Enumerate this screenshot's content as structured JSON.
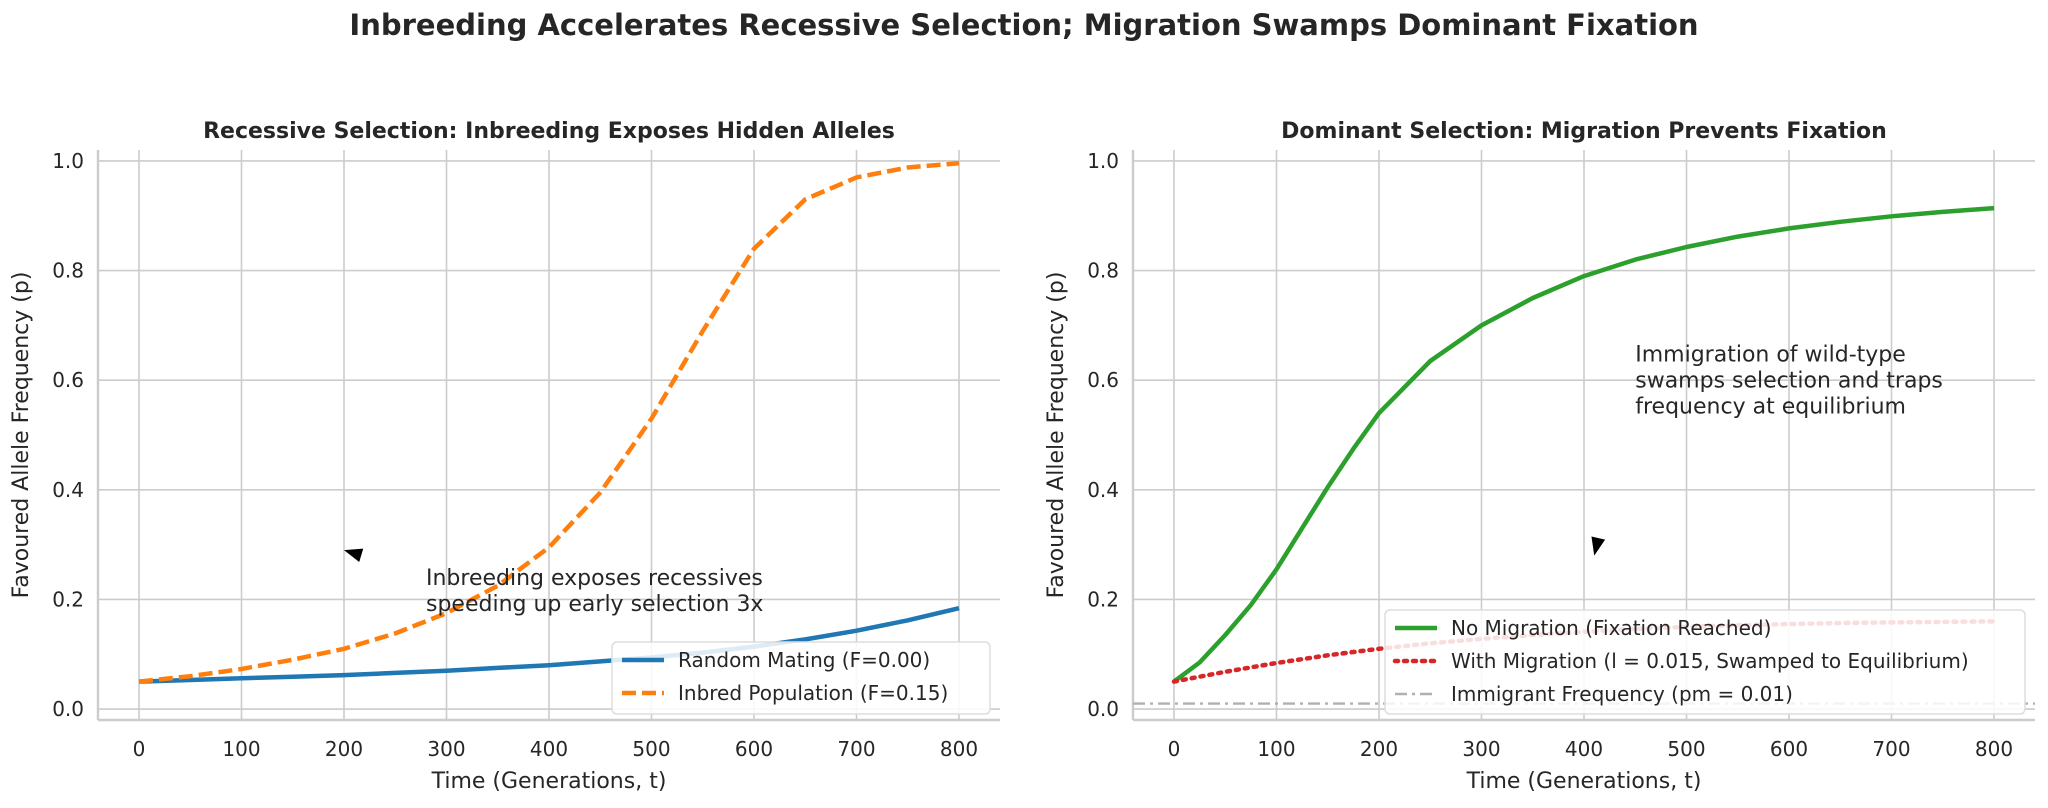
{
  "suptitle": "Inbreeding Accelerates Recessive Selection; Migration Swamps Dominant Fixation",
  "chart_data": [
    {
      "type": "line",
      "title": "Recessive Selection: Inbreeding Exposes Hidden Alleles",
      "xlabel": "Time (Generations, t)",
      "ylabel": "Favoured Allele Frequency (p)",
      "xlim": [
        -40,
        840
      ],
      "ylim": [
        -0.02,
        1.02
      ],
      "xticks": [
        0,
        100,
        200,
        300,
        400,
        500,
        600,
        700,
        800
      ],
      "yticks": [
        0.0,
        0.2,
        0.4,
        0.6,
        0.8,
        1.0
      ],
      "xtick_labels": [
        "0",
        "100",
        "200",
        "300",
        "400",
        "500",
        "600",
        "700",
        "800"
      ],
      "ytick_labels": [
        "0.0",
        "0.2",
        "0.4",
        "0.6",
        "0.8",
        "1.0"
      ],
      "grid": true,
      "legend_position": "lower-right",
      "series": [
        {
          "name": "Random Mating (F=0.00)",
          "color": "#1f77b4",
          "style": "solid",
          "x": [
            0,
            50,
            100,
            150,
            200,
            250,
            300,
            350,
            400,
            450,
            500,
            550,
            600,
            650,
            700,
            750,
            800
          ],
          "y": [
            0.05,
            0.053,
            0.056,
            0.059,
            0.062,
            0.066,
            0.07,
            0.075,
            0.08,
            0.087,
            0.094,
            0.103,
            0.114,
            0.127,
            0.143,
            0.162,
            0.184
          ]
        },
        {
          "name": "Inbred Population (F=0.15)",
          "color": "#ff7f0e",
          "style": "dashed",
          "x": [
            0,
            50,
            100,
            150,
            200,
            250,
            300,
            350,
            400,
            450,
            500,
            550,
            600,
            650,
            700,
            750,
            800
          ],
          "y": [
            0.05,
            0.06,
            0.073,
            0.09,
            0.11,
            0.138,
            0.175,
            0.225,
            0.295,
            0.395,
            0.53,
            0.69,
            0.84,
            0.93,
            0.97,
            0.988,
            0.996
          ]
        }
      ],
      "annotations": [
        {
          "text_lines": [
            "Inbreeding exposes recessives",
            "speeding up early selection 3x"
          ],
          "x": 280,
          "y": 0.19,
          "arrow_to": [
            200,
            0.29
          ]
        }
      ]
    },
    {
      "type": "line",
      "title": "Dominant Selection: Migration Prevents Fixation",
      "xlabel": "Time (Generations, t)",
      "ylabel": "Favoured Allele Frequency (p)",
      "xlim": [
        -40,
        840
      ],
      "ylim": [
        -0.02,
        1.02
      ],
      "xticks": [
        0,
        100,
        200,
        300,
        400,
        500,
        600,
        700,
        800
      ],
      "yticks": [
        0.0,
        0.2,
        0.4,
        0.6,
        0.8,
        1.0
      ],
      "xtick_labels": [
        "0",
        "100",
        "200",
        "300",
        "400",
        "500",
        "600",
        "700",
        "800"
      ],
      "ytick_labels": [
        "0.0",
        "0.2",
        "0.4",
        "0.6",
        "0.8",
        "1.0"
      ],
      "grid": true,
      "legend_position": "lower-right",
      "series": [
        {
          "name": "No Migration (Fixation Reached)",
          "color": "#2ca02c",
          "style": "solid",
          "x": [
            0,
            25,
            50,
            75,
            100,
            125,
            150,
            175,
            200,
            250,
            300,
            350,
            400,
            450,
            500,
            550,
            600,
            650,
            700,
            750,
            800
          ],
          "y": [
            0.05,
            0.085,
            0.135,
            0.19,
            0.255,
            0.33,
            0.405,
            0.475,
            0.54,
            0.635,
            0.7,
            0.75,
            0.79,
            0.82,
            0.843,
            0.862,
            0.877,
            0.889,
            0.899,
            0.907,
            0.914
          ]
        },
        {
          "name": "With Migration (l = 0.015, Swamped to Equilibrium)",
          "color": "#d62728",
          "style": "dotted",
          "x": [
            0,
            50,
            100,
            150,
            200,
            250,
            300,
            350,
            400,
            450,
            500,
            550,
            600,
            650,
            700,
            750,
            800
          ],
          "y": [
            0.05,
            0.068,
            0.084,
            0.098,
            0.11,
            0.12,
            0.128,
            0.135,
            0.141,
            0.146,
            0.15,
            0.153,
            0.155,
            0.157,
            0.158,
            0.159,
            0.16
          ]
        },
        {
          "name": "Immigrant Frequency (pm = 0.01)",
          "color": "#b0b0b0",
          "style": "dashdot",
          "x": [
            -40,
            840
          ],
          "y": [
            0.01,
            0.01
          ]
        }
      ],
      "annotations": [
        {
          "text_lines": [
            "Immigration of wild-type",
            "swamps selection and traps",
            "frequency at equilibrium"
          ],
          "x": 450,
          "y": 0.55,
          "arrow_to": [
            410,
            0.28
          ]
        }
      ]
    }
  ]
}
